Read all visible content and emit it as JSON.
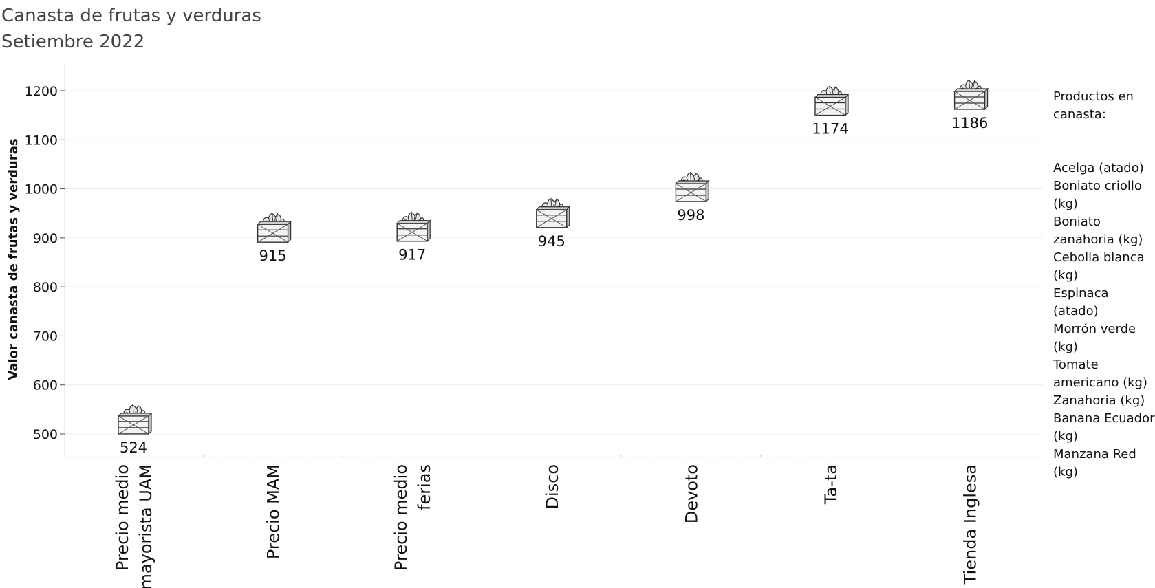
{
  "chart_data": {
    "type": "scatter",
    "title": "Canasta de frutas y verduras",
    "subtitle": "Setiembre 2022",
    "ylabel": "Valor canasta de frutas y verduras",
    "xlabel": "",
    "ylim": [
      450,
      1250
    ],
    "yticks": [
      500,
      600,
      700,
      800,
      900,
      1000,
      1100,
      1200
    ],
    "grid": true,
    "marker": "crate-of-vegetables-icon",
    "categories": [
      [
        "Precio medio",
        "mayorista UAM"
      ],
      [
        "Precio MAM"
      ],
      [
        "Precio medio",
        "ferias"
      ],
      [
        "Disco"
      ],
      [
        "Devoto"
      ],
      [
        "Ta-ta"
      ],
      [
        "Tienda Inglesa"
      ]
    ],
    "values": [
      524,
      915,
      917,
      945,
      998,
      1174,
      1186
    ],
    "legend": {
      "title_lines": [
        "Productos en",
        "canasta:"
      ],
      "placement": "right",
      "items": [
        [
          "Acelga (atado)"
        ],
        [
          "Boniato criollo",
          "(kg)"
        ],
        [
          "Boniato",
          "zanahoria (kg)"
        ],
        [
          "Cebolla blanca",
          "(kg)"
        ],
        [
          "Espinaca",
          "(atado)"
        ],
        [
          "Morrón verde",
          "(kg)"
        ],
        [
          "Tomate",
          "americano (kg)"
        ],
        [
          "Zanahoria (kg)"
        ],
        [
          "Banana Ecuador",
          "(kg)"
        ],
        [
          "Manzana Red",
          "(kg)"
        ]
      ]
    }
  }
}
